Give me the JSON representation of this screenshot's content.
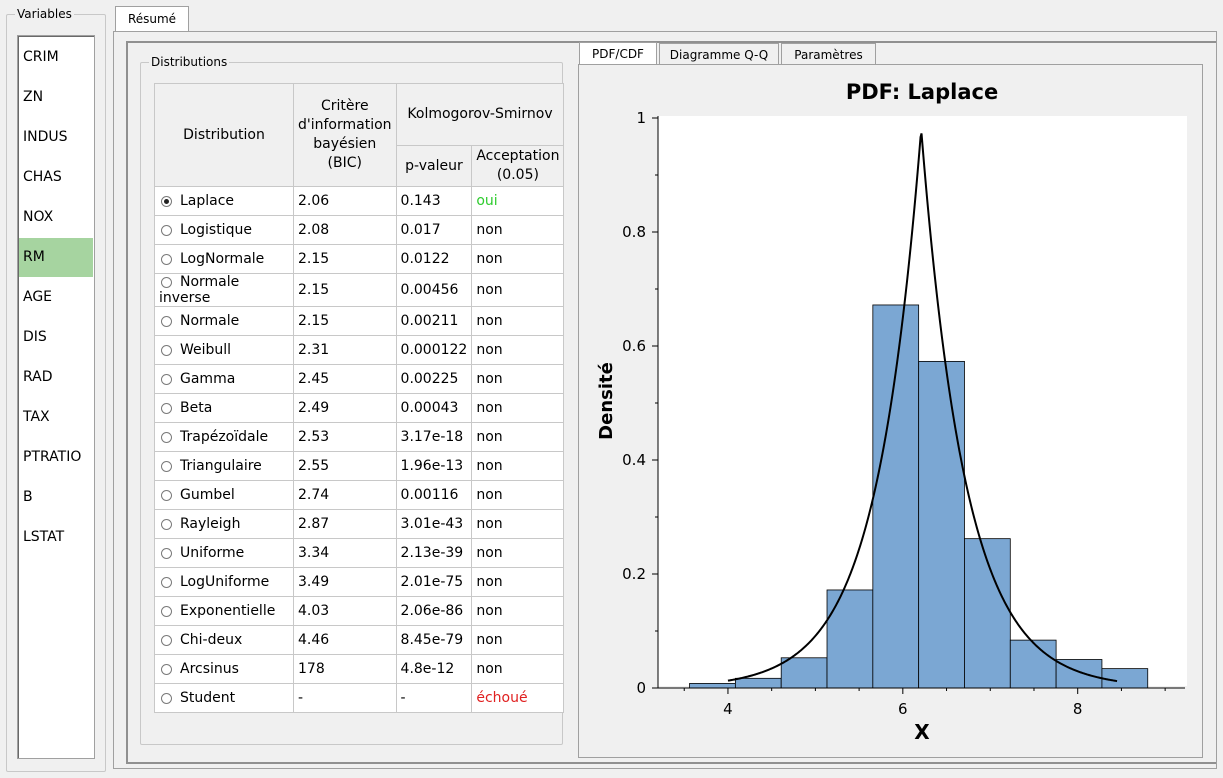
{
  "variables": {
    "title": "Variables",
    "items": [
      "CRIM",
      "ZN",
      "INDUS",
      "CHAS",
      "NOX",
      "RM",
      "AGE",
      "DIS",
      "RAD",
      "TAX",
      "PTRATIO",
      "B",
      "LSTAT"
    ],
    "selected": "RM"
  },
  "tabs": {
    "resume": "Résumé"
  },
  "distributions": {
    "title": "Distributions",
    "headers": {
      "distribution": "Distribution",
      "bic": "Critère d'information bayésien (BIC)",
      "ks": "Kolmogorov-Smirnov",
      "pvalue": "p-valeur",
      "acceptance": "Acceptation (0.05)"
    },
    "rows": [
      {
        "name": "Laplace",
        "bic": "2.06",
        "p": "0.143",
        "accept": "oui",
        "status": "ok",
        "selected": true
      },
      {
        "name": "Logistique",
        "bic": "2.08",
        "p": "0.017",
        "accept": "non",
        "status": "no"
      },
      {
        "name": "LogNormale",
        "bic": "2.15",
        "p": "0.0122",
        "accept": "non",
        "status": "no"
      },
      {
        "name": "Normale inverse",
        "bic": "2.15",
        "p": "0.00456",
        "accept": "non",
        "status": "no"
      },
      {
        "name": "Normale",
        "bic": "2.15",
        "p": "0.00211",
        "accept": "non",
        "status": "no"
      },
      {
        "name": "Weibull",
        "bic": "2.31",
        "p": "0.000122",
        "accept": "non",
        "status": "no"
      },
      {
        "name": "Gamma",
        "bic": "2.45",
        "p": "0.00225",
        "accept": "non",
        "status": "no"
      },
      {
        "name": "Beta",
        "bic": "2.49",
        "p": "0.00043",
        "accept": "non",
        "status": "no"
      },
      {
        "name": "Trapézoïdale",
        "bic": "2.53",
        "p": "3.17e-18",
        "accept": "non",
        "status": "no"
      },
      {
        "name": "Triangulaire",
        "bic": "2.55",
        "p": "1.96e-13",
        "accept": "non",
        "status": "no"
      },
      {
        "name": "Gumbel",
        "bic": "2.74",
        "p": "0.00116",
        "accept": "non",
        "status": "no"
      },
      {
        "name": "Rayleigh",
        "bic": "2.87",
        "p": "3.01e-43",
        "accept": "non",
        "status": "no"
      },
      {
        "name": "Uniforme",
        "bic": "3.34",
        "p": "2.13e-39",
        "accept": "non",
        "status": "no"
      },
      {
        "name": "LogUniforme",
        "bic": "3.49",
        "p": "2.01e-75",
        "accept": "non",
        "status": "no"
      },
      {
        "name": "Exponentielle",
        "bic": "4.03",
        "p": "2.06e-86",
        "accept": "non",
        "status": "no"
      },
      {
        "name": "Chi-deux",
        "bic": "4.46",
        "p": "8.45e-79",
        "accept": "non",
        "status": "no"
      },
      {
        "name": "Arcsinus",
        "bic": "178",
        "p": "4.8e-12",
        "accept": "non",
        "status": "no"
      },
      {
        "name": "Student",
        "bic": "-",
        "p": "-",
        "accept": "échoué",
        "status": "fail"
      }
    ]
  },
  "chart_tabs": [
    "PDF/CDF",
    "Diagramme Q-Q",
    "Paramètres"
  ],
  "chart_data": {
    "type": "bar",
    "title": "PDF: Laplace",
    "xlabel": "X",
    "ylabel": "Densité",
    "xlim": [
      3.2,
      9.25
    ],
    "ylim": [
      0,
      1
    ],
    "xticks": [
      4,
      6,
      8
    ],
    "yticks": [
      0,
      0.2,
      0.4,
      0.6,
      0.8,
      1
    ],
    "histogram": {
      "bin_edges": [
        3.561,
        4.085,
        4.609,
        5.133,
        5.657,
        6.181,
        6.705,
        7.229,
        7.753,
        8.277,
        8.801
      ],
      "values": [
        0.008,
        0.017,
        0.053,
        0.172,
        0.672,
        0.573,
        0.262,
        0.084,
        0.05,
        0.034
      ]
    },
    "pdf_curve": {
      "name": "Laplace",
      "location": 6.21,
      "scale": 0.51,
      "x_range": [
        4.0,
        8.45
      ]
    },
    "colors": {
      "bars": "#7ba7d3",
      "bar_edge": "#000000",
      "curve": "#000000",
      "plot_bg": "#ffffff"
    },
    "grid": false
  }
}
